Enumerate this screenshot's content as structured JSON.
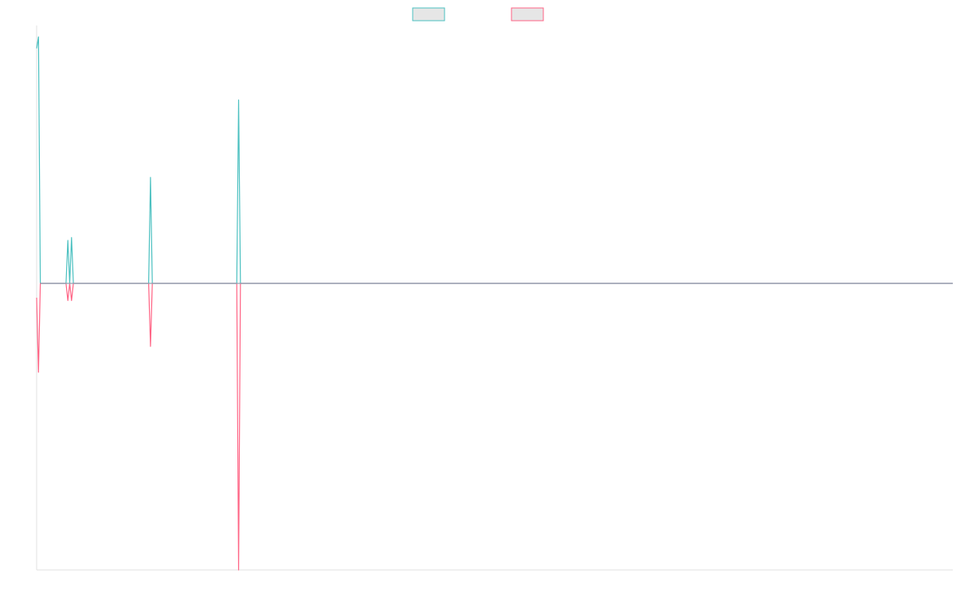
{
  "chart_data": {
    "type": "line",
    "title": "",
    "xlabel": "",
    "ylabel": "",
    "legend_position": "top-center",
    "grid": false,
    "x": [
      0,
      1,
      2,
      3,
      4,
      5,
      6,
      7,
      8,
      9,
      10,
      11,
      12,
      13,
      14,
      15,
      16,
      17,
      18,
      19,
      20,
      21,
      22,
      23,
      24,
      25,
      26,
      27,
      28,
      29,
      30,
      31,
      32,
      33,
      34,
      35,
      36,
      37,
      38,
      39,
      40,
      41,
      42,
      43,
      44,
      45,
      46,
      47,
      48,
      49,
      50,
      51,
      52,
      53,
      54,
      55,
      56,
      57,
      58,
      59,
      60,
      61,
      62,
      63,
      64,
      65,
      66,
      67,
      68,
      69,
      70,
      71,
      72,
      73,
      74,
      75,
      76,
      77,
      78,
      79,
      80,
      81,
      82,
      83,
      84,
      85,
      86,
      87,
      88,
      89,
      90,
      91,
      92,
      93,
      94,
      95,
      96,
      97,
      98,
      99,
      100,
      101,
      102,
      103,
      104,
      105,
      106,
      107,
      108,
      109,
      110,
      111,
      112,
      113,
      114,
      115,
      116,
      117,
      118,
      119,
      120,
      121,
      122,
      123,
      124,
      125,
      126,
      127,
      128,
      129,
      130,
      131,
      132,
      133,
      134,
      135,
      136,
      137,
      138,
      139,
      140,
      141,
      142,
      143,
      144,
      145,
      146,
      147,
      148,
      149,
      150,
      151,
      152,
      153,
      154,
      155,
      156,
      157,
      158,
      159,
      160,
      161,
      162,
      163,
      164,
      165,
      166,
      167,
      168,
      169,
      170,
      171,
      172,
      173,
      174,
      175,
      176,
      177,
      178,
      179,
      180,
      181,
      182,
      183,
      184,
      185,
      186,
      187,
      188,
      189,
      190,
      191,
      192,
      193,
      194,
      195,
      196,
      197,
      198,
      199,
      200,
      201,
      202,
      203,
      204,
      205,
      206,
      207,
      208,
      209,
      210,
      211,
      212,
      213,
      214,
      215,
      216,
      217,
      218,
      219,
      220,
      221,
      222,
      223,
      224,
      225,
      226,
      227,
      228,
      229,
      230,
      231,
      232,
      233,
      234,
      235,
      236,
      237,
      238,
      239,
      240,
      241,
      242,
      243,
      244,
      245,
      246,
      247,
      248,
      249,
      250,
      251,
      252,
      253,
      254,
      255,
      256,
      257,
      258,
      259,
      260,
      261,
      262,
      263,
      264,
      265,
      266,
      267,
      268,
      269,
      270,
      271,
      272,
      273,
      274,
      275,
      276,
      277,
      278,
      279,
      280,
      281,
      282,
      283,
      284,
      285,
      286,
      287,
      288,
      289,
      290,
      291,
      292,
      293,
      294,
      295,
      296,
      297,
      298,
      299,
      300,
      301,
      302,
      303,
      304,
      305,
      306,
      307,
      308,
      309,
      310,
      311,
      312,
      313,
      314,
      315,
      316,
      317,
      318,
      319,
      320,
      321,
      322,
      323,
      324,
      325,
      326,
      327,
      328,
      329,
      330,
      331,
      332,
      333,
      334,
      335,
      336,
      337,
      338,
      339,
      340,
      341,
      342,
      343,
      344,
      345,
      346,
      347,
      348,
      349,
      350,
      351,
      352,
      353,
      354,
      355,
      356,
      357,
      358,
      359,
      360,
      361,
      362,
      363,
      364,
      365,
      366,
      367,
      368,
      369,
      370,
      371,
      372,
      373,
      374,
      375,
      376,
      377,
      378,
      379,
      380,
      381,
      382,
      383,
      384,
      385,
      386,
      387,
      388,
      389,
      390,
      391,
      392,
      393,
      394,
      395,
      396,
      397,
      398,
      399,
      400,
      401,
      402,
      403,
      404,
      405,
      406,
      407,
      408,
      409,
      410,
      411,
      412,
      413,
      414,
      415,
      416,
      417,
      418,
      419,
      420,
      421,
      422,
      423,
      424,
      425,
      426,
      427,
      428,
      429,
      430,
      431,
      432,
      433,
      434,
      435,
      436,
      437,
      438,
      439,
      440,
      441,
      442,
      443,
      444,
      445,
      446,
      447,
      448,
      449,
      450,
      451,
      452,
      453,
      454,
      455,
      456,
      457,
      458,
      459,
      460,
      461,
      462,
      463,
      464,
      465,
      466,
      467,
      468,
      469,
      470,
      471,
      472,
      473,
      474,
      475,
      476,
      477,
      478,
      479,
      480,
      481,
      482,
      483,
      484,
      485,
      486,
      487,
      488,
      489,
      490,
      491,
      492,
      493,
      494,
      495,
      496,
      497,
      498,
      499
    ],
    "ylim": [
      -100,
      90
    ],
    "series": [
      {
        "name": "",
        "color": "#4bc0c0",
        "spikes": [
          [
            0,
            82
          ],
          [
            1,
            86
          ],
          [
            2,
            0
          ],
          [
            17,
            15
          ],
          [
            18,
            0
          ],
          [
            19,
            16
          ],
          [
            20,
            0
          ],
          [
            62,
            37
          ],
          [
            63,
            0
          ],
          [
            110,
            64
          ],
          [
            111,
            0
          ]
        ]
      },
      {
        "name": "",
        "color": "#ff6384",
        "spikes": [
          [
            0,
            -5
          ],
          [
            1,
            -31
          ],
          [
            2,
            0
          ],
          [
            17,
            -6
          ],
          [
            18,
            0
          ],
          [
            19,
            -6
          ],
          [
            20,
            0
          ],
          [
            62,
            -22
          ],
          [
            63,
            0
          ],
          [
            110,
            -100
          ],
          [
            111,
            0
          ]
        ]
      }
    ]
  },
  "legend": {
    "items": [
      {
        "label": "",
        "stroke": "#4bc0c0"
      },
      {
        "label": "",
        "stroke": "#ff6384"
      }
    ]
  }
}
